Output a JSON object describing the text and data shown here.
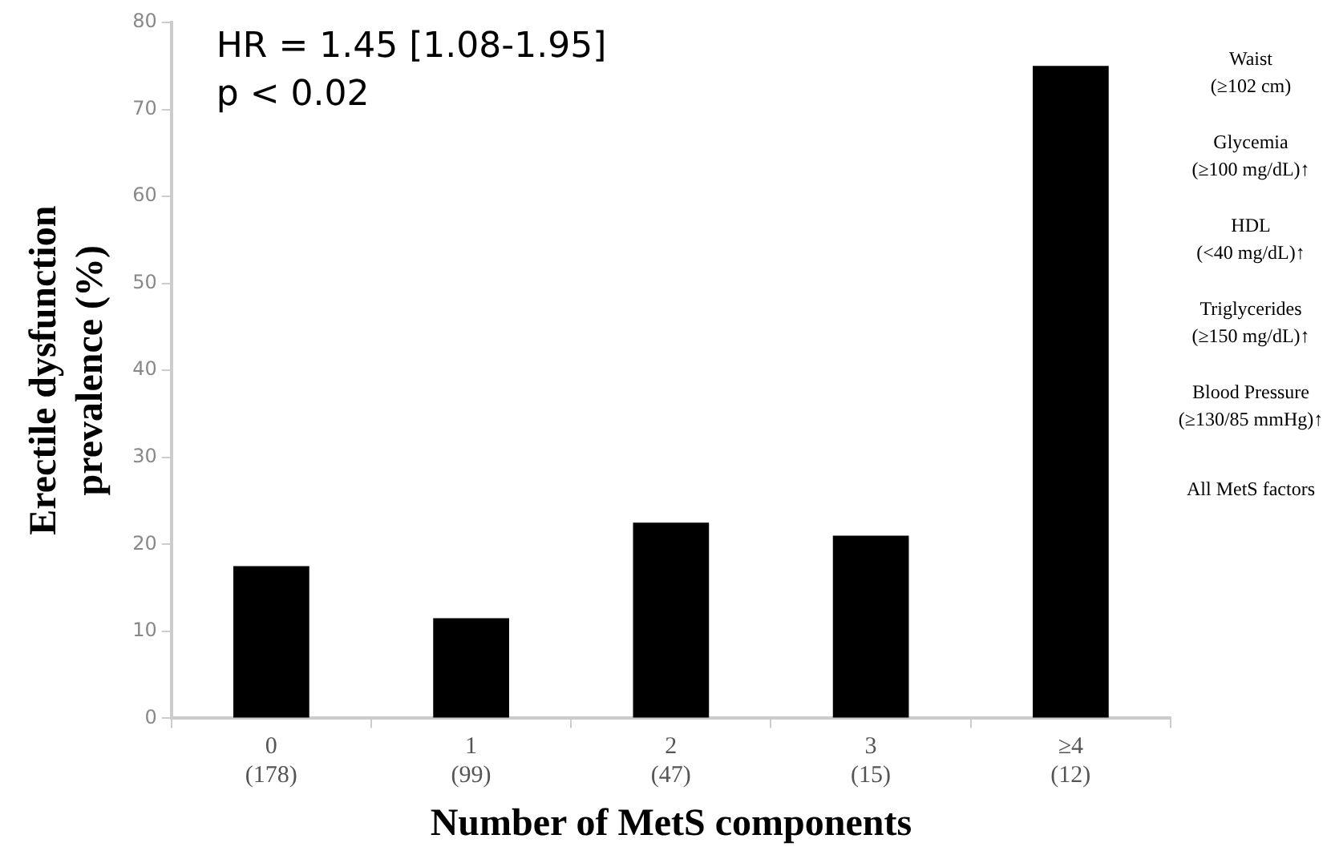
{
  "chart_data": {
    "type": "bar",
    "xlabel": "Number of MetS components",
    "ylabel": "Erectile dysfunction\nprevalence (%)",
    "categories": [
      "0\n(178)",
      "1\n(99)",
      "2\n(47)",
      "3\n(15)",
      "≥4\n(12)"
    ],
    "values": [
      17.5,
      11.5,
      22.5,
      21,
      75
    ],
    "color": "#000000",
    "ylim": [
      0,
      80
    ],
    "yticks": [
      0,
      10,
      20,
      30,
      40,
      50,
      60,
      70,
      80
    ],
    "grid": false,
    "legend": false,
    "annotations": [
      "HR = 1.45 [1.08-1.95]",
      "p < 0.02",
      "Waist\n(≥102 cm)",
      "Glycemia\n(≥100 mg/dL)↑",
      "HDL\n(<40 mg/dL)↑",
      "Triglycerides\n(≥150 mg/dL)↑",
      "Blood Pressure\n(≥130/85 mmHg)↑",
      "All MetS factors"
    ]
  }
}
